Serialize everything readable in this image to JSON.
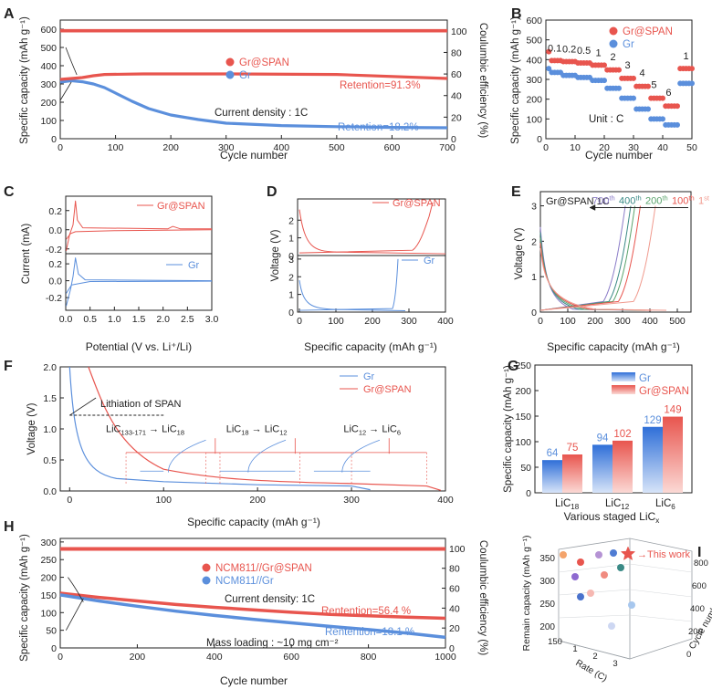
{
  "colors": {
    "red": "#e8554e",
    "blue": "#5b8fdc",
    "axis": "#222222"
  },
  "panels": {
    "A": {
      "letter": "A",
      "xlabel": "Cycle number",
      "ylabel": "Specific capacity (mAh g⁻¹)",
      "ylabel2": "Coulumbic efficiency (%)",
      "annotation": "Current density : 1C",
      "legend": [
        "Gr@SPAN",
        "Gr"
      ],
      "retention_labels": [
        "Retention=91.3%",
        "Retention=18.2%"
      ],
      "xticks": [
        "0",
        "100",
        "200",
        "300",
        "400",
        "500",
        "600",
        "700"
      ],
      "yticks": [
        "0",
        "100",
        "200",
        "300",
        "400",
        "500",
        "600"
      ],
      "y2ticks": [
        "0",
        "20",
        "40",
        "60",
        "80",
        "100"
      ],
      "chart_data": {
        "type": "line",
        "xlim": [
          0,
          700
        ],
        "ylim": [
          0,
          650
        ],
        "y2lim": [
          0,
          110
        ],
        "series": [
          {
            "name": "Gr@SPAN",
            "axis": "left",
            "x": [
              0,
              20,
              40,
              60,
              80,
              150,
              300,
              500,
              700
            ],
            "values": [
              325,
              330,
              335,
              345,
              352,
              355,
              355,
              352,
              330
            ]
          },
          {
            "name": "Gr",
            "axis": "left",
            "x": [
              0,
              20,
              40,
              60,
              80,
              100,
              130,
              160,
              200,
              250,
              300,
              400,
              500,
              600,
              700
            ],
            "values": [
              310,
              318,
              312,
              300,
              280,
              250,
              205,
              165,
              130,
              105,
              85,
              72,
              66,
              62,
              60
            ]
          },
          {
            "name": "Gr@SPAN CE",
            "axis": "right",
            "x": [
              0,
              700
            ],
            "values": [
              100,
              100
            ]
          },
          {
            "name": "Gr CE",
            "axis": "right",
            "x": [
              0,
              700
            ],
            "values": [
              101,
              101
            ]
          }
        ]
      }
    },
    "B": {
      "letter": "B",
      "xlabel": "Cycle number",
      "ylabel": "Specific capacity (mAh g⁻¹)",
      "legend": [
        "Gr@SPAN",
        "Gr"
      ],
      "unit_text": "Unit : C",
      "rate_labels": [
        "0.1",
        "0.2",
        "0.5",
        "1",
        "2",
        "3",
        "4",
        "5",
        "6",
        "1"
      ],
      "xticks": [
        "0",
        "10",
        "20",
        "30",
        "40",
        "50"
      ],
      "yticks": [
        "0",
        "100",
        "200",
        "300",
        "400",
        "500",
        "600"
      ],
      "chart_data": {
        "type": "scatter",
        "xlim": [
          0,
          50
        ],
        "ylim": [
          0,
          600
        ],
        "series": [
          {
            "name": "Gr@SPAN",
            "levels": [
              395,
              390,
              383,
              372,
              348,
              305,
              265,
              205,
              165,
              355
            ]
          },
          {
            "name": "Gr",
            "levels": [
              335,
              320,
              310,
              295,
              255,
              205,
              150,
              100,
              70,
              280
            ]
          }
        ]
      }
    },
    "C": {
      "letter": "C",
      "xlabel": "Potential (V vs. Li⁺/Li)",
      "ylabel": "Current (mA)",
      "legend": [
        "Gr@SPAN",
        "Gr"
      ],
      "xticks": [
        "0.0",
        "0.5",
        "1.0",
        "1.5",
        "2.0",
        "2.5",
        "3.0"
      ],
      "yticks_top": [
        "-0.2",
        "0.0",
        "0.2"
      ],
      "yticks_bottom": [
        "-0.2",
        "0.0",
        "0.2"
      ],
      "chart_data": {
        "type": "line",
        "xlim": [
          0,
          3
        ],
        "ylim": [
          -0.3,
          0.35
        ]
      }
    },
    "D": {
      "letter": "D",
      "xlabel": "Specific capacity (mAh g⁻¹)",
      "ylabel": "Voltage (V)",
      "legend": [
        "Gr@SPAN",
        "Gr"
      ],
      "xticks": [
        "0",
        "100",
        "200",
        "300",
        "400"
      ],
      "yticks_top": [
        "0",
        "1",
        "2"
      ],
      "yticks_bottom": [
        "0",
        "1",
        "2",
        "3"
      ],
      "chart_data": {
        "type": "line",
        "xlim": [
          0,
          400
        ],
        "ylim": [
          0,
          3
        ]
      }
    },
    "E": {
      "letter": "E",
      "xlabel": "Specific capacity (mAh g⁻¹)",
      "ylabel": "Voltage (V)",
      "title": "Gr@SPAN  1C",
      "cycle_labels": [
        {
          "num": "700",
          "sup": "th",
          "color": "#8b7cc8"
        },
        {
          "num": "400",
          "sup": "th",
          "color": "#3a8a86"
        },
        {
          "num": "200",
          "sup": "th",
          "color": "#5aa36c"
        },
        {
          "num": "100",
          "sup": "th",
          "color": "#e8554e"
        },
        {
          "num": "1",
          "sup": "st",
          "color": "#f09a8e"
        }
      ],
      "xticks": [
        "0",
        "100",
        "200",
        "300",
        "400",
        "500"
      ],
      "yticks": [
        "0",
        "1",
        "2",
        "3"
      ],
      "chart_data": {
        "type": "line",
        "xlim": [
          0,
          550
        ],
        "ylim": [
          0,
          3.4
        ]
      }
    },
    "F": {
      "letter": "F",
      "xlabel": "Specific capacity (mAh g⁻¹)",
      "ylabel": "Voltage (V)",
      "legend": [
        "Gr",
        "Gr@SPAN"
      ],
      "lith_label": "Lithiation of SPAN",
      "stage_labels": [
        {
          "a": "LiC",
          "as": "133-171",
          "b": "LiC",
          "bs": "18"
        },
        {
          "a": "LiC",
          "as": "18",
          "b": "LiC",
          "bs": "12"
        },
        {
          "a": "LiC",
          "as": "12",
          "b": "LiC",
          "bs": "6"
        }
      ],
      "xticks": [
        "0",
        "100",
        "200",
        "300",
        "400"
      ],
      "yticks": [
        "0.0",
        "0.5",
        "1.0",
        "1.5",
        "2.0"
      ],
      "chart_data": {
        "type": "line",
        "xlim": [
          -10,
          400
        ],
        "ylim": [
          0,
          2
        ]
      }
    },
    "G": {
      "letter": "G",
      "xlabel": "Various staged LiC",
      "xlabel_sub": "x",
      "ylabel": "Specific capacity (mAh g⁻¹)",
      "legend": [
        "Gr",
        "Gr@SPAN"
      ],
      "yticks": [
        "0",
        "50",
        "100",
        "150",
        "200",
        "250"
      ],
      "chart_data": {
        "type": "bar",
        "categories": [
          {
            "base": "LiC",
            "sub": "18"
          },
          {
            "base": "LiC",
            "sub": "12"
          },
          {
            "base": "LiC",
            "sub": "6"
          }
        ],
        "ylim": [
          0,
          250
        ],
        "series": [
          {
            "name": "Gr",
            "values": [
              64,
              94,
              129
            ]
          },
          {
            "name": "Gr@SPAN",
            "values": [
              75,
              102,
              149
            ]
          }
        ]
      }
    },
    "H": {
      "letter": "H",
      "xlabel": "Cycle number",
      "ylabel": "Specific capacity (mAh g⁻¹)",
      "ylabel2": "Coulumbic efficiency (%)",
      "legend": [
        "NCM811//Gr@SPAN",
        "NCM811//Gr"
      ],
      "annotation": "Current density: 1C",
      "mass": "Mass loading : ~10 mg cm⁻²",
      "retention_labels": [
        "Rentention=56.4 %",
        "Rentention=18.1 %"
      ],
      "xticks": [
        "0",
        "200",
        "400",
        "600",
        "800",
        "1000"
      ],
      "yticks": [
        "0",
        "50",
        "100",
        "150",
        "200",
        "250",
        "300"
      ],
      "y2ticks": [
        "0",
        "20",
        "40",
        "60",
        "80",
        "100"
      ],
      "chart_data": {
        "type": "line",
        "xlim": [
          0,
          1000
        ],
        "ylim": [
          0,
          310
        ],
        "y2lim": [
          0,
          110
        ],
        "series": [
          {
            "name": "NCM811//Gr@SPAN",
            "axis": "left",
            "x": [
              0,
              100,
              200,
              300,
              400,
              500,
              600,
              700,
              800,
              900,
              1000
            ],
            "values": [
              155,
              143,
              133,
              123,
              115,
              108,
              101,
              95,
              91,
              87,
              84
            ]
          },
          {
            "name": "NCM811//Gr",
            "axis": "left",
            "x": [
              0,
              100,
              200,
              300,
              400,
              500,
              600,
              700,
              800,
              900,
              1000
            ],
            "values": [
              150,
              133,
              118,
              104,
              92,
              81,
              71,
              61,
              52,
              42,
              30
            ]
          },
          {
            "name": "CE",
            "axis": "right",
            "x": [
              0,
              1000
            ],
            "values": [
              99.5,
              99.5
            ]
          }
        ]
      }
    },
    "I": {
      "letter": "I",
      "ylabel": "Remain capacity (mAh g⁻¹)",
      "xlabel": "Rate (C)",
      "zlabel": "Cycle number",
      "this_work": "This work",
      "yticks": [
        "200",
        "250",
        "300",
        "350"
      ],
      "xticks": [
        "150",
        "1",
        "2",
        "3"
      ],
      "zticks": [
        "0",
        "200",
        "400",
        "600",
        "800"
      ]
    }
  }
}
